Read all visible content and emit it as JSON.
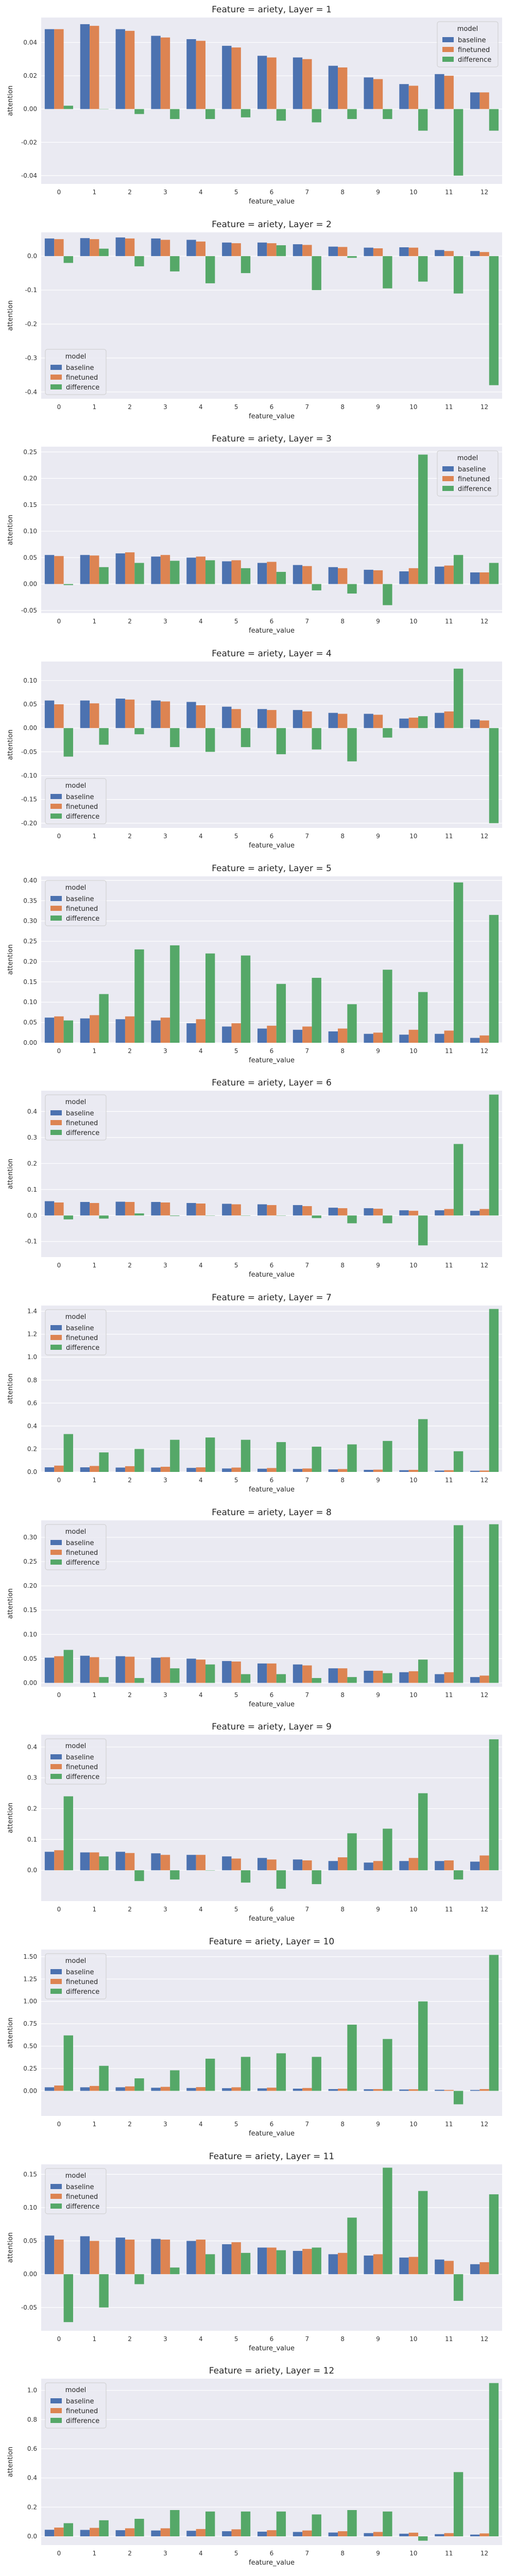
{
  "colors": {
    "background": "#eaeaf2",
    "grid": "#ffffff",
    "baseline": "#4c72b0",
    "finetuned": "#dd8452",
    "difference": "#55a868"
  },
  "legend_title": "model",
  "chart_data": [
    {
      "type": "bar",
      "title": "Feature = ariety, Layer = 1",
      "xlabel": "feature_value",
      "ylabel": "attention",
      "categories": [
        "0",
        "1",
        "2",
        "3",
        "4",
        "5",
        "6",
        "7",
        "8",
        "9",
        "10",
        "11",
        "12"
      ],
      "ylim": [
        -0.045,
        0.055
      ],
      "yticks": [
        -0.04,
        -0.02,
        0.0,
        0.02,
        0.04
      ],
      "tick_decimals": 2,
      "legend": "top-right",
      "series": [
        {
          "name": "baseline",
          "values": [
            0.048,
            0.051,
            0.048,
            0.044,
            0.042,
            0.038,
            0.032,
            0.031,
            0.026,
            0.019,
            0.015,
            0.021,
            0.01
          ]
        },
        {
          "name": "finetuned",
          "values": [
            0.048,
            0.05,
            0.047,
            0.043,
            0.041,
            0.037,
            0.031,
            0.03,
            0.025,
            0.018,
            0.014,
            0.02,
            0.01
          ]
        },
        {
          "name": "difference",
          "values": [
            0.002,
            0.0,
            -0.003,
            -0.006,
            -0.006,
            -0.005,
            -0.007,
            -0.008,
            -0.006,
            -0.006,
            -0.013,
            -0.04,
            -0.013
          ]
        }
      ]
    },
    {
      "type": "bar",
      "title": "Feature = ariety, Layer = 2",
      "xlabel": "feature_value",
      "ylabel": "attention",
      "categories": [
        "0",
        "1",
        "2",
        "3",
        "4",
        "5",
        "6",
        "7",
        "8",
        "9",
        "10",
        "11",
        "12"
      ],
      "ylim": [
        -0.42,
        0.07
      ],
      "yticks": [
        -0.4,
        -0.3,
        -0.2,
        -0.1,
        0.0
      ],
      "tick_decimals": 1,
      "legend": "bottom-left",
      "series": [
        {
          "name": "baseline",
          "values": [
            0.052,
            0.053,
            0.055,
            0.052,
            0.048,
            0.04,
            0.04,
            0.035,
            0.028,
            0.025,
            0.026,
            0.018,
            0.015
          ]
        },
        {
          "name": "finetuned",
          "values": [
            0.05,
            0.05,
            0.052,
            0.048,
            0.043,
            0.038,
            0.038,
            0.033,
            0.027,
            0.023,
            0.025,
            0.015,
            0.012
          ]
        },
        {
          "name": "difference",
          "values": [
            -0.02,
            0.022,
            -0.03,
            -0.045,
            -0.08,
            -0.05,
            0.032,
            -0.1,
            -0.005,
            -0.095,
            -0.075,
            -0.11,
            -0.38
          ]
        }
      ]
    },
    {
      "type": "bar",
      "title": "Feature = ariety, Layer = 3",
      "xlabel": "feature_value",
      "ylabel": "attention",
      "categories": [
        "0",
        "1",
        "2",
        "3",
        "4",
        "5",
        "6",
        "7",
        "8",
        "9",
        "10",
        "11",
        "12"
      ],
      "ylim": [
        -0.055,
        0.26
      ],
      "yticks": [
        -0.05,
        0.0,
        0.05,
        0.1,
        0.15,
        0.2,
        0.25
      ],
      "tick_decimals": 2,
      "legend": "top-right",
      "series": [
        {
          "name": "baseline",
          "values": [
            0.055,
            0.055,
            0.058,
            0.052,
            0.05,
            0.043,
            0.04,
            0.036,
            0.032,
            0.027,
            0.024,
            0.033,
            0.022
          ]
        },
        {
          "name": "finetuned",
          "values": [
            0.053,
            0.054,
            0.06,
            0.055,
            0.052,
            0.045,
            0.042,
            0.034,
            0.03,
            0.026,
            0.03,
            0.035,
            0.022
          ]
        },
        {
          "name": "difference",
          "values": [
            -0.002,
            0.032,
            0.04,
            0.044,
            0.045,
            0.03,
            0.023,
            -0.012,
            -0.018,
            -0.04,
            0.245,
            0.055,
            0.04
          ]
        }
      ]
    },
    {
      "type": "bar",
      "title": "Feature = ariety, Layer = 4",
      "xlabel": "feature_value",
      "ylabel": "attention",
      "categories": [
        "0",
        "1",
        "2",
        "3",
        "4",
        "5",
        "6",
        "7",
        "8",
        "9",
        "10",
        "11",
        "12"
      ],
      "ylim": [
        -0.21,
        0.14
      ],
      "yticks": [
        -0.2,
        -0.15,
        -0.1,
        -0.05,
        0.0,
        0.05,
        0.1
      ],
      "tick_decimals": 2,
      "legend": "bottom-left",
      "series": [
        {
          "name": "baseline",
          "values": [
            0.058,
            0.058,
            0.062,
            0.058,
            0.055,
            0.045,
            0.04,
            0.038,
            0.032,
            0.03,
            0.02,
            0.032,
            0.018
          ]
        },
        {
          "name": "finetuned",
          "values": [
            0.05,
            0.052,
            0.06,
            0.056,
            0.048,
            0.04,
            0.038,
            0.035,
            0.03,
            0.028,
            0.022,
            0.035,
            0.016
          ]
        },
        {
          "name": "difference",
          "values": [
            -0.06,
            -0.035,
            -0.013,
            -0.04,
            -0.05,
            -0.04,
            -0.055,
            -0.045,
            -0.07,
            -0.02,
            0.025,
            0.125,
            -0.2
          ]
        }
      ]
    },
    {
      "type": "bar",
      "title": "Feature = ariety, Layer = 5",
      "xlabel": "feature_value",
      "ylabel": "attention",
      "categories": [
        "0",
        "1",
        "2",
        "3",
        "4",
        "5",
        "6",
        "7",
        "8",
        "9",
        "10",
        "11",
        "12"
      ],
      "ylim": [
        0,
        0.41
      ],
      "yticks": [
        0.0,
        0.05,
        0.1,
        0.15,
        0.2,
        0.25,
        0.3,
        0.35,
        0.4
      ],
      "tick_decimals": 2,
      "legend": "top-left",
      "series": [
        {
          "name": "baseline",
          "values": [
            0.062,
            0.06,
            0.058,
            0.055,
            0.048,
            0.04,
            0.035,
            0.032,
            0.028,
            0.022,
            0.02,
            0.022,
            0.012
          ]
        },
        {
          "name": "finetuned",
          "values": [
            0.065,
            0.068,
            0.065,
            0.062,
            0.058,
            0.048,
            0.042,
            0.04,
            0.035,
            0.025,
            0.032,
            0.03,
            0.018
          ]
        },
        {
          "name": "difference",
          "values": [
            0.055,
            0.12,
            0.23,
            0.24,
            0.22,
            0.215,
            0.145,
            0.16,
            0.095,
            0.18,
            0.125,
            0.395,
            0.315
          ]
        }
      ]
    },
    {
      "type": "bar",
      "title": "Feature = ariety, Layer = 6",
      "xlabel": "feature_value",
      "ylabel": "attention",
      "categories": [
        "0",
        "1",
        "2",
        "3",
        "4",
        "5",
        "6",
        "7",
        "8",
        "9",
        "10",
        "11",
        "12"
      ],
      "ylim": [
        -0.16,
        0.48
      ],
      "yticks": [
        -0.1,
        0.0,
        0.1,
        0.2,
        0.3,
        0.4
      ],
      "tick_decimals": 1,
      "legend": "top-left",
      "series": [
        {
          "name": "baseline",
          "values": [
            0.055,
            0.052,
            0.053,
            0.052,
            0.048,
            0.045,
            0.043,
            0.04,
            0.03,
            0.028,
            0.02,
            0.02,
            0.018
          ]
        },
        {
          "name": "finetuned",
          "values": [
            0.05,
            0.048,
            0.052,
            0.05,
            0.046,
            0.043,
            0.04,
            0.036,
            0.028,
            0.026,
            0.018,
            0.025,
            0.025
          ]
        },
        {
          "name": "difference",
          "values": [
            -0.015,
            -0.012,
            0.008,
            -0.002,
            0.0,
            0.0,
            0.0,
            -0.01,
            -0.03,
            -0.03,
            -0.115,
            0.275,
            0.465
          ]
        }
      ]
    },
    {
      "type": "bar",
      "title": "Feature = ariety, Layer = 7",
      "xlabel": "feature_value",
      "ylabel": "attention",
      "categories": [
        "0",
        "1",
        "2",
        "3",
        "4",
        "5",
        "6",
        "7",
        "8",
        "9",
        "10",
        "11",
        "12"
      ],
      "ylim": [
        0,
        1.45
      ],
      "yticks": [
        0.0,
        0.2,
        0.4,
        0.6,
        0.8,
        1.0,
        1.2,
        1.4
      ],
      "tick_decimals": 1,
      "legend": "top-left",
      "series": [
        {
          "name": "baseline",
          "values": [
            0.04,
            0.04,
            0.038,
            0.038,
            0.035,
            0.03,
            0.028,
            0.026,
            0.022,
            0.018,
            0.015,
            0.012,
            0.01
          ]
        },
        {
          "name": "finetuned",
          "values": [
            0.055,
            0.052,
            0.05,
            0.045,
            0.04,
            0.038,
            0.034,
            0.03,
            0.025,
            0.02,
            0.018,
            0.015,
            0.012
          ]
        },
        {
          "name": "difference",
          "values": [
            0.33,
            0.17,
            0.2,
            0.28,
            0.3,
            0.28,
            0.26,
            0.22,
            0.24,
            0.27,
            0.46,
            0.18,
            1.42
          ]
        }
      ]
    },
    {
      "type": "bar",
      "title": "Feature = ariety, Layer = 8",
      "xlabel": "feature_value",
      "ylabel": "attention",
      "categories": [
        "0",
        "1",
        "2",
        "3",
        "4",
        "5",
        "6",
        "7",
        "8",
        "9",
        "10",
        "11",
        "12"
      ],
      "ylim": [
        -0.008,
        0.335
      ],
      "yticks": [
        0.0,
        0.05,
        0.1,
        0.15,
        0.2,
        0.25,
        0.3
      ],
      "tick_decimals": 2,
      "legend": "top-left",
      "series": [
        {
          "name": "baseline",
          "values": [
            0.052,
            0.056,
            0.055,
            0.052,
            0.05,
            0.045,
            0.04,
            0.038,
            0.03,
            0.025,
            0.022,
            0.018,
            0.012
          ]
        },
        {
          "name": "finetuned",
          "values": [
            0.055,
            0.053,
            0.054,
            0.053,
            0.048,
            0.044,
            0.04,
            0.036,
            0.03,
            0.025,
            0.024,
            0.022,
            0.015
          ]
        },
        {
          "name": "difference",
          "values": [
            0.068,
            0.012,
            0.01,
            0.03,
            0.038,
            0.018,
            0.018,
            0.01,
            0.012,
            0.02,
            0.048,
            0.325,
            0.327
          ]
        }
      ]
    },
    {
      "type": "bar",
      "title": "Feature = ariety, Layer = 9",
      "xlabel": "feature_value",
      "ylabel": "attention",
      "categories": [
        "0",
        "1",
        "2",
        "3",
        "4",
        "5",
        "6",
        "7",
        "8",
        "9",
        "10",
        "11",
        "12"
      ],
      "ylim": [
        -0.1,
        0.44
      ],
      "yticks": [
        0.0,
        0.1,
        0.2,
        0.3,
        0.4
      ],
      "tick_decimals": 1,
      "legend": "top-left",
      "series": [
        {
          "name": "baseline",
          "values": [
            0.06,
            0.058,
            0.06,
            0.055,
            0.05,
            0.045,
            0.04,
            0.035,
            0.03,
            0.025,
            0.03,
            0.03,
            0.028
          ]
        },
        {
          "name": "finetuned",
          "values": [
            0.065,
            0.058,
            0.056,
            0.05,
            0.05,
            0.038,
            0.035,
            0.032,
            0.042,
            0.03,
            0.04,
            0.032,
            0.048
          ]
        },
        {
          "name": "difference",
          "values": [
            0.24,
            0.045,
            -0.035,
            -0.03,
            0.0,
            -0.04,
            -0.06,
            -0.045,
            0.12,
            0.135,
            0.25,
            -0.03,
            0.425
          ]
        }
      ]
    },
    {
      "type": "bar",
      "title": "Feature = ariety, Layer = 10",
      "xlabel": "feature_value",
      "ylabel": "attention",
      "categories": [
        "0",
        "1",
        "2",
        "3",
        "4",
        "5",
        "6",
        "7",
        "8",
        "9",
        "10",
        "11",
        "12"
      ],
      "ylim": [
        -0.28,
        1.58
      ],
      "yticks": [
        0.0,
        0.25,
        0.5,
        0.75,
        1.0,
        1.25,
        1.5
      ],
      "tick_decimals": 2,
      "legend": "top-left",
      "series": [
        {
          "name": "baseline",
          "values": [
            0.04,
            0.04,
            0.04,
            0.035,
            0.032,
            0.03,
            0.028,
            0.025,
            0.02,
            0.018,
            0.015,
            0.012,
            0.01
          ]
        },
        {
          "name": "finetuned",
          "values": [
            0.06,
            0.055,
            0.05,
            0.045,
            0.042,
            0.04,
            0.036,
            0.032,
            0.025,
            0.02,
            0.018,
            0.01,
            0.02
          ]
        },
        {
          "name": "difference",
          "values": [
            0.62,
            0.28,
            0.14,
            0.23,
            0.36,
            0.38,
            0.42,
            0.38,
            0.74,
            0.58,
            1.0,
            -0.15,
            1.52
          ]
        }
      ]
    },
    {
      "type": "bar",
      "title": "Feature = ariety, Layer = 11",
      "xlabel": "feature_value",
      "ylabel": "attention",
      "categories": [
        "0",
        "1",
        "2",
        "3",
        "4",
        "5",
        "6",
        "7",
        "8",
        "9",
        "10",
        "11",
        "12"
      ],
      "ylim": [
        -0.085,
        0.165
      ],
      "yticks": [
        -0.05,
        0.0,
        0.05,
        0.1,
        0.15
      ],
      "tick_decimals": 2,
      "legend": "top-left",
      "series": [
        {
          "name": "baseline",
          "values": [
            0.058,
            0.057,
            0.055,
            0.053,
            0.05,
            0.045,
            0.04,
            0.035,
            0.03,
            0.028,
            0.025,
            0.022,
            0.015
          ]
        },
        {
          "name": "finetuned",
          "values": [
            0.052,
            0.05,
            0.052,
            0.052,
            0.052,
            0.048,
            0.04,
            0.038,
            0.032,
            0.03,
            0.026,
            0.02,
            0.018
          ]
        },
        {
          "name": "difference",
          "values": [
            -0.072,
            -0.05,
            -0.015,
            0.01,
            0.03,
            0.032,
            0.036,
            0.04,
            0.085,
            0.16,
            0.125,
            -0.04,
            0.12
          ]
        }
      ]
    },
    {
      "type": "bar",
      "title": "Feature = ariety, Layer = 12",
      "xlabel": "feature_value",
      "ylabel": "attention",
      "categories": [
        "0",
        "1",
        "2",
        "3",
        "4",
        "5",
        "6",
        "7",
        "8",
        "9",
        "10",
        "11",
        "12"
      ],
      "ylim": [
        -0.06,
        1.08
      ],
      "yticks": [
        0.0,
        0.2,
        0.4,
        0.6,
        0.8,
        1.0
      ],
      "tick_decimals": 1,
      "legend": "top-left",
      "series": [
        {
          "name": "baseline",
          "values": [
            0.045,
            0.044,
            0.042,
            0.04,
            0.038,
            0.035,
            0.032,
            0.03,
            0.026,
            0.022,
            0.018,
            0.015,
            0.012
          ]
        },
        {
          "name": "finetuned",
          "values": [
            0.06,
            0.058,
            0.055,
            0.055,
            0.05,
            0.048,
            0.042,
            0.04,
            0.035,
            0.03,
            0.025,
            0.022,
            0.02
          ]
        },
        {
          "name": "difference",
          "values": [
            0.09,
            0.11,
            0.12,
            0.18,
            0.17,
            0.17,
            0.17,
            0.15,
            0.18,
            0.17,
            -0.03,
            0.44,
            1.05
          ]
        }
      ]
    }
  ]
}
